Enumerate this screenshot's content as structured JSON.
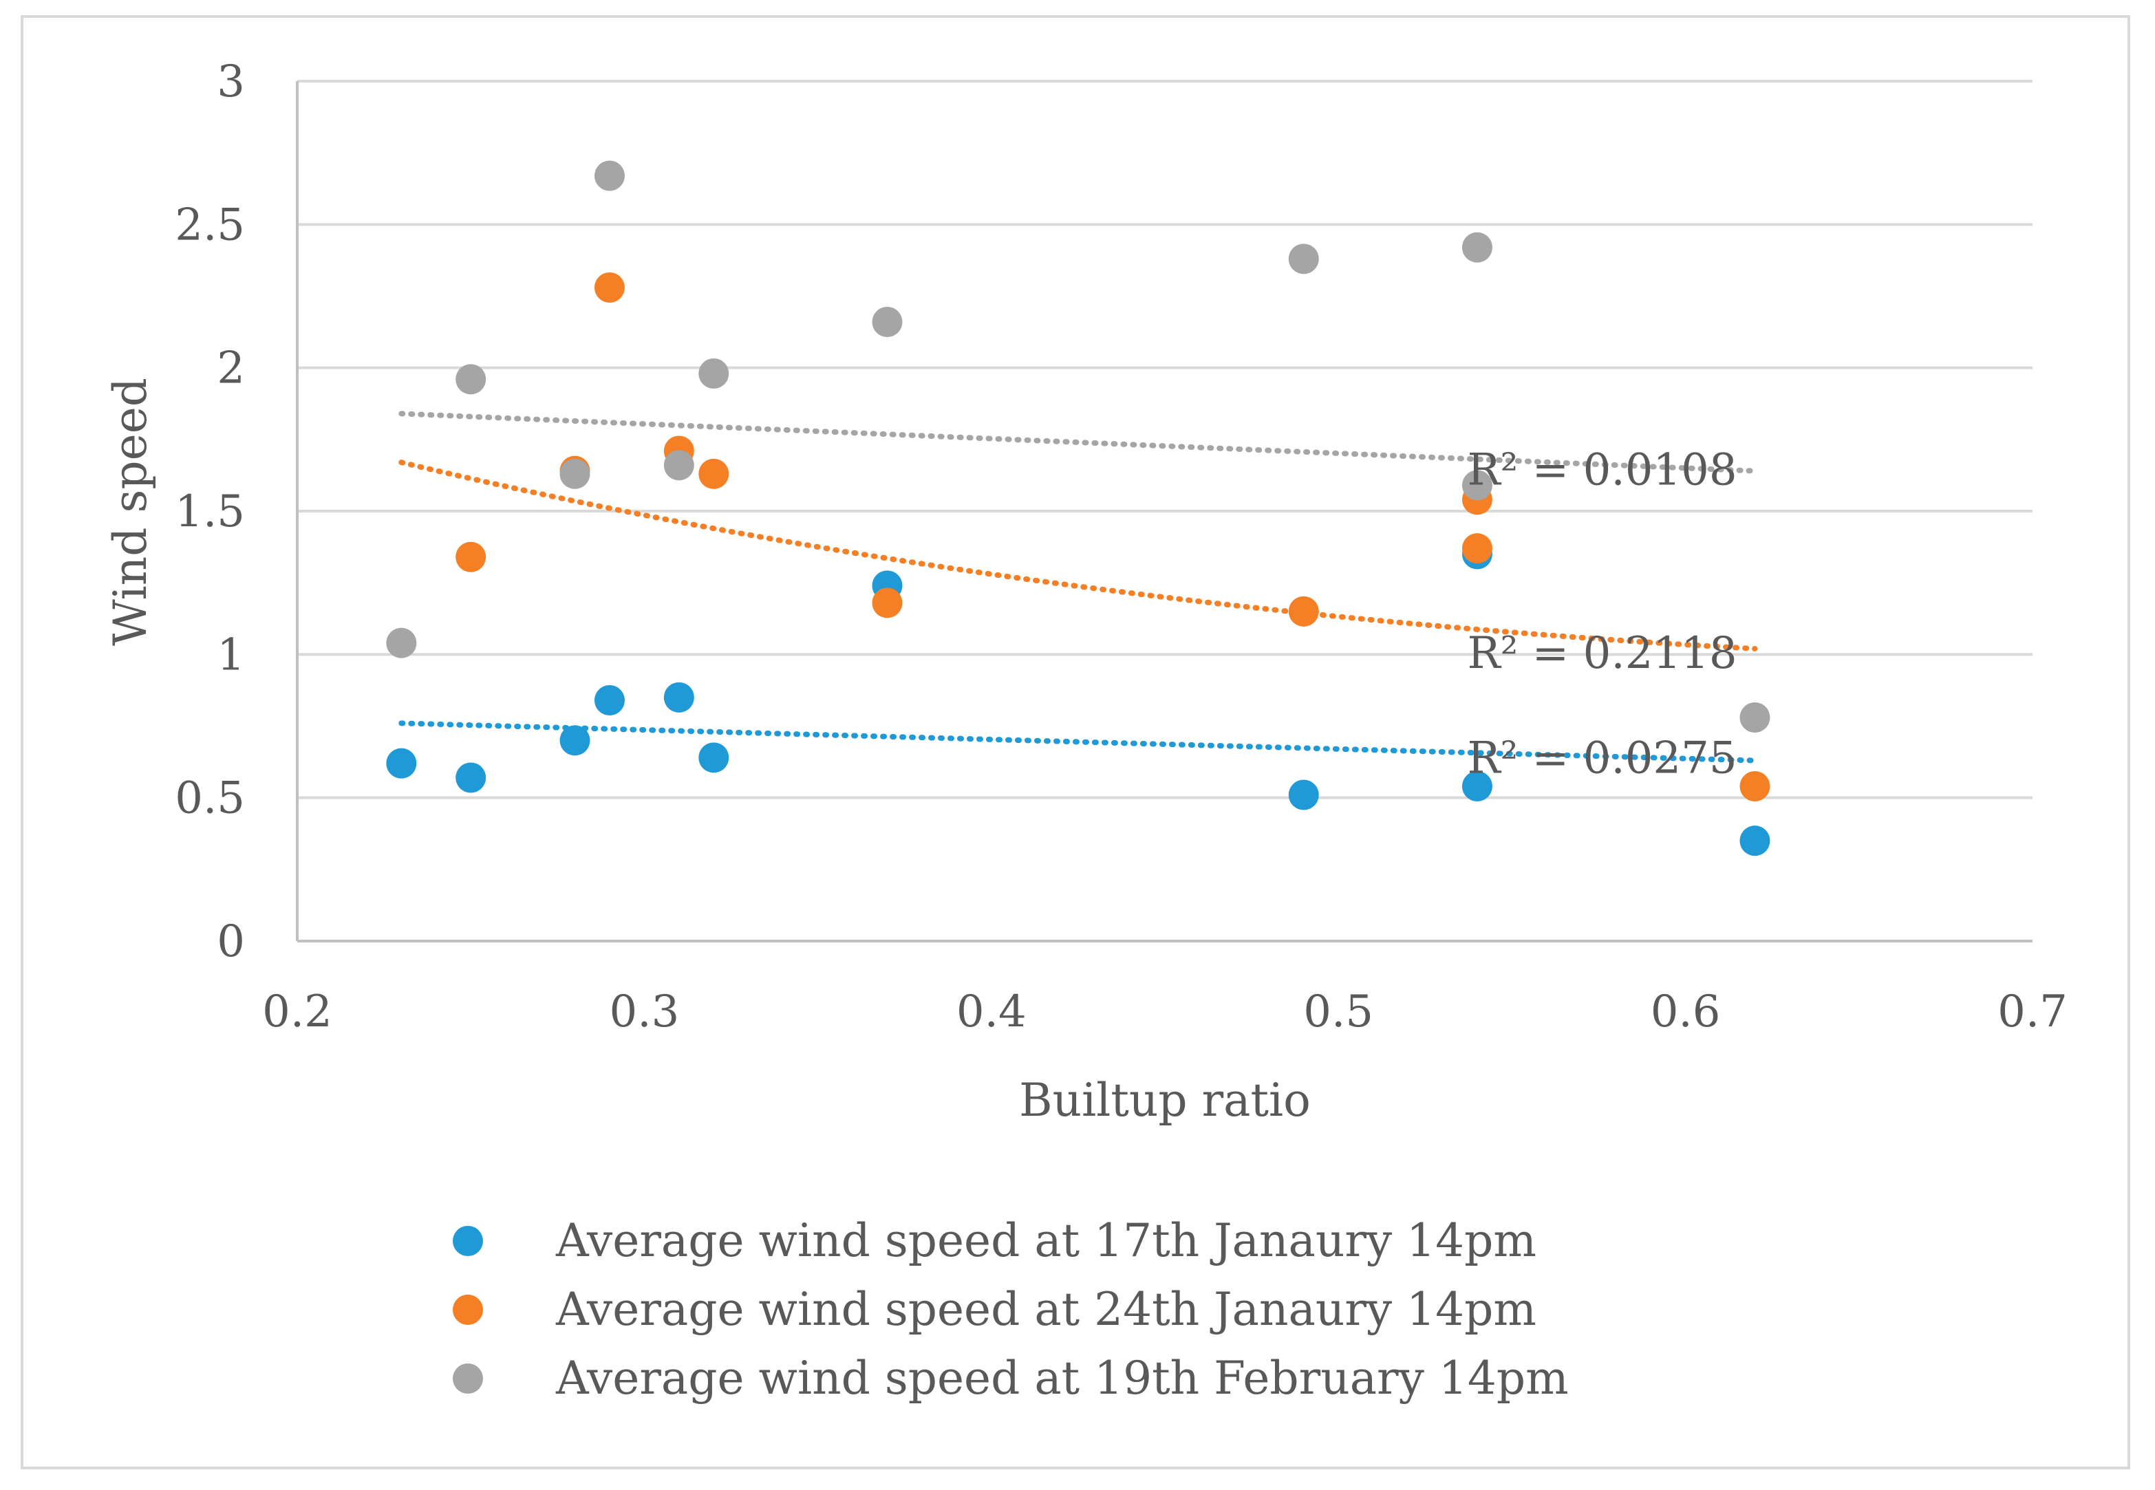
{
  "chart_data": {
    "type": "scatter",
    "title": "",
    "xlabel": "Builtup ratio",
    "ylabel": "Wind speed",
    "xlim": [
      0.2,
      0.7
    ],
    "ylim": [
      0,
      3
    ],
    "xticks": [
      0.2,
      0.3,
      0.4,
      0.5,
      0.6,
      0.7
    ],
    "xtick_labels": [
      "0.2",
      "0.3",
      "0.4",
      "0.5",
      "0.6",
      "0.7"
    ],
    "yticks": [
      0,
      0.5,
      1,
      1.5,
      2,
      2.5,
      3
    ],
    "ytick_labels": [
      "0",
      "0.5",
      "1",
      "1.5",
      "2",
      "2.5",
      "3"
    ],
    "grid": "horizontal",
    "legend_position": "bottom",
    "series": [
      {
        "name": "Average wind speed at 17th Janaury  14pm",
        "color": "#1f9ad6",
        "points": [
          [
            0.23,
            0.62
          ],
          [
            0.25,
            0.57
          ],
          [
            0.28,
            0.7
          ],
          [
            0.29,
            0.84
          ],
          [
            0.31,
            0.85
          ],
          [
            0.32,
            0.64
          ],
          [
            0.37,
            1.24
          ],
          [
            0.49,
            0.51
          ],
          [
            0.54,
            1.35
          ],
          [
            0.54,
            0.54
          ],
          [
            0.62,
            0.35
          ]
        ],
        "trendline": {
          "type": "linear",
          "x_range": [
            0.23,
            0.62
          ],
          "start": 0.76,
          "end": 0.63,
          "r2_label": "R² = 0.0275"
        }
      },
      {
        "name": "Average wind speed  at 24th Janaury  14pm",
        "color": "#f57f25",
        "points": [
          [
            0.25,
            1.34
          ],
          [
            0.28,
            1.64
          ],
          [
            0.29,
            2.28
          ],
          [
            0.31,
            1.71
          ],
          [
            0.32,
            1.63
          ],
          [
            0.37,
            1.18
          ],
          [
            0.49,
            1.15
          ],
          [
            0.54,
            1.54
          ],
          [
            0.54,
            1.37
          ],
          [
            0.62,
            0.54
          ]
        ],
        "trendline": {
          "type": "curved",
          "x_range": [
            0.23,
            0.62
          ],
          "start": 1.67,
          "end": 1.02,
          "r2_label": "R² = 0.2118"
        }
      },
      {
        "name": "Average wind speed  at 19th February  14pm",
        "color": "#a5a5a5",
        "points": [
          [
            0.23,
            1.04
          ],
          [
            0.25,
            1.96
          ],
          [
            0.28,
            1.63
          ],
          [
            0.29,
            2.67
          ],
          [
            0.31,
            1.66
          ],
          [
            0.32,
            1.98
          ],
          [
            0.37,
            2.16
          ],
          [
            0.49,
            2.38
          ],
          [
            0.54,
            2.42
          ],
          [
            0.54,
            1.59
          ],
          [
            0.62,
            0.78
          ]
        ],
        "trendline": {
          "type": "linear",
          "x_range": [
            0.23,
            0.62
          ],
          "start": 1.84,
          "end": 1.64,
          "r2_label": "R² = 0.0108"
        }
      }
    ]
  }
}
